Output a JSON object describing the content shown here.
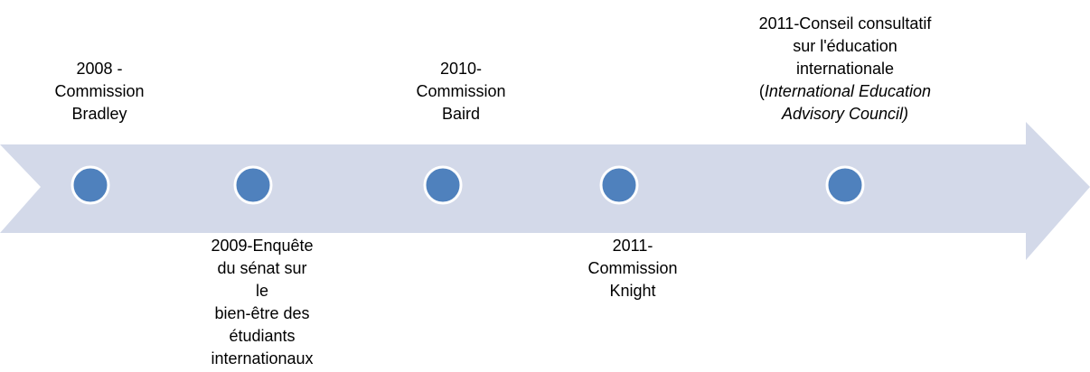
{
  "events": [
    {
      "lines": [
        "2008 -",
        "Commission",
        "Bradley"
      ]
    },
    {
      "lines": [
        "2009-Enquête",
        "du sénat sur",
        "le",
        "bien-être des",
        "étudiants",
        "internationaux"
      ]
    },
    {
      "lines": [
        "2010-",
        "Commission",
        "Baird"
      ]
    },
    {
      "lines": [
        "2011-",
        "Commission",
        "Knight"
      ]
    },
    {
      "lines": [
        "2011-Conseil  consultatif",
        "sur l'éducation",
        "internationale",
        [
          {
            "text": "(",
            "italic": false
          },
          {
            "text": "International Education",
            "italic": true
          }
        ],
        [
          {
            "text": "Advisory Council)",
            "italic": true
          }
        ]
      ]
    }
  ]
}
